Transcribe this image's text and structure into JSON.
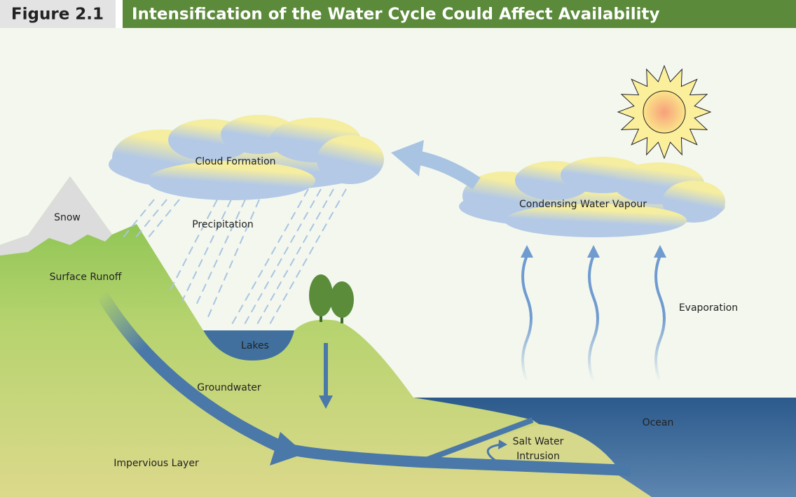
{
  "header": {
    "figure": "Figure 2.1",
    "title": "Intensification of the Water Cycle Could Affect Availability"
  },
  "labels": {
    "cloud_formation": "Cloud Formation",
    "precipitation": "Precipitation",
    "snow": "Snow",
    "surface_runoff": "Surface Runoff",
    "lakes": "Lakes",
    "groundwater": "Groundwater",
    "impervious_layer": "Impervious Layer",
    "salt_water_intrusion": [
      "Salt Water",
      "Intrusion"
    ],
    "ocean": "Ocean",
    "condensing_water_vapour": "Condensing Water Vapour",
    "evaporation": "Evaporation"
  }
}
